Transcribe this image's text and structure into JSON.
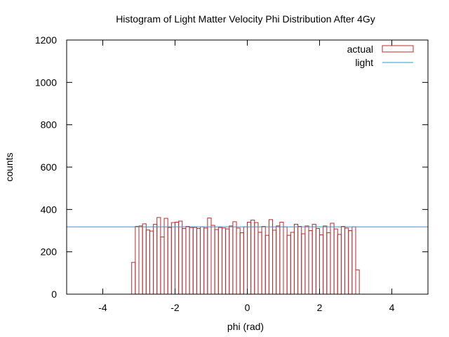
{
  "chart_data": {
    "type": "bar",
    "title": "Histogram of Light Matter Velocity Phi Distribution After 4Gy",
    "xlabel": "phi (rad)",
    "ylabel": "counts",
    "xlim": [
      -5,
      5
    ],
    "ylim": [
      0,
      1200
    ],
    "xticks": [
      -4,
      -2,
      0,
      2,
      4
    ],
    "yticks": [
      0,
      200,
      400,
      600,
      800,
      1000,
      1200
    ],
    "grid": false,
    "legend_position": "top-right",
    "bin_start": -3.2,
    "bin_width": 0.1,
    "series": [
      {
        "name": "actual",
        "style": "histogram-steps",
        "color": "#c0282a",
        "values": [
          150,
          320,
          322,
          332,
          303,
          298,
          330,
          362,
          270,
          358,
          315,
          338,
          340,
          345,
          310,
          320,
          315,
          315,
          310,
          318,
          312,
          360,
          325,
          305,
          315,
          312,
          308,
          322,
          342,
          312,
          290,
          318,
          340,
          350,
          338,
          292,
          320,
          278,
          352,
          302,
          322,
          340,
          318,
          278,
          292,
          330,
          320,
          285,
          322,
          300,
          330,
          310,
          280,
          322,
          290,
          335,
          308,
          282,
          320,
          312,
          300,
          318,
          115
        ]
      },
      {
        "name": "light",
        "style": "line",
        "color": "#2a9ac0",
        "y": 318
      }
    ]
  }
}
